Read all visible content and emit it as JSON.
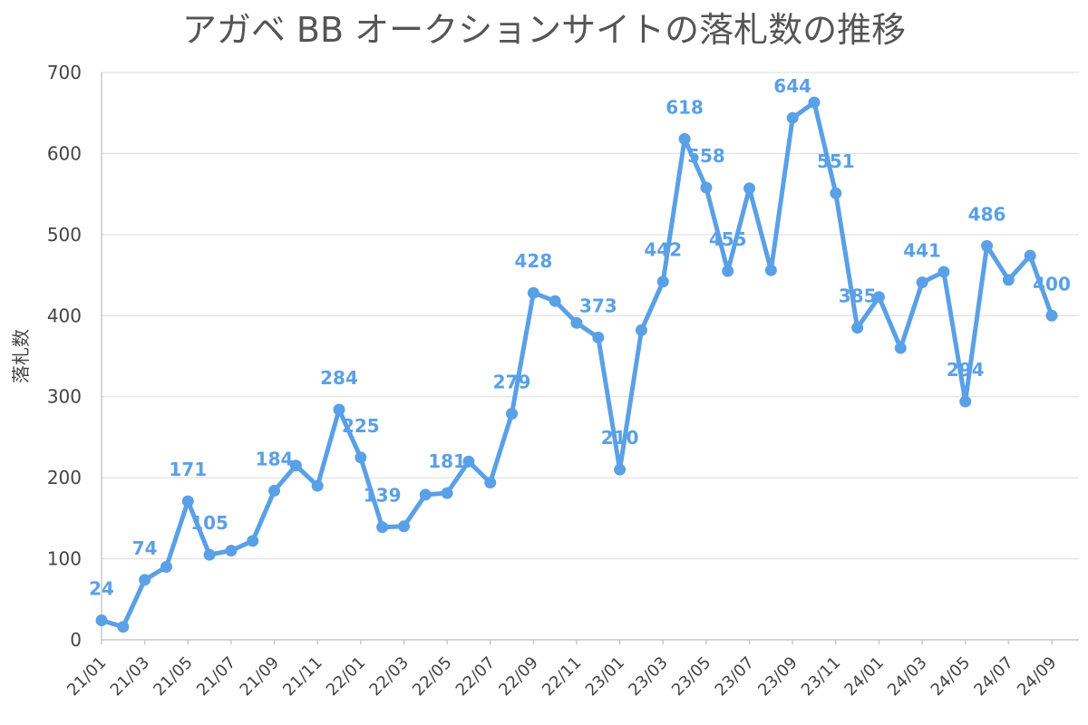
{
  "chart_data": {
    "type": "line",
    "title": "アガベ BB オークションサイトの落札数の推移",
    "xlabel": "",
    "ylabel": "落札数",
    "ylim": [
      0,
      700
    ],
    "yticks": [
      0,
      100,
      200,
      300,
      400,
      500,
      600,
      700
    ],
    "grid": true,
    "legend": "none",
    "line_color": "#5aa0e6",
    "categories": [
      "21/01",
      "21/02",
      "21/03",
      "21/04",
      "21/05",
      "21/06",
      "21/07",
      "21/08",
      "21/09",
      "21/10",
      "21/11",
      "21/12",
      "22/01",
      "22/02",
      "22/03",
      "22/04",
      "22/05",
      "22/06",
      "22/07",
      "22/08",
      "22/09",
      "22/10",
      "22/11",
      "22/12",
      "23/01",
      "23/02",
      "23/03",
      "23/04",
      "23/05",
      "23/06",
      "23/07",
      "23/08",
      "23/09",
      "23/10",
      "23/11",
      "23/12",
      "24/01",
      "24/02",
      "24/03",
      "24/04",
      "24/05",
      "24/06",
      "24/07",
      "24/08",
      "24/09"
    ],
    "tick_labels": [
      "21/01",
      "21/03",
      "21/05",
      "21/07",
      "21/09",
      "21/11",
      "22/01",
      "22/03",
      "22/05",
      "22/07",
      "22/09",
      "22/11",
      "23/01",
      "23/03",
      "23/05",
      "23/07",
      "23/09",
      "23/11",
      "24/01",
      "24/03",
      "24/05",
      "24/07",
      "24/09"
    ],
    "series": [
      {
        "values": [
          24,
          16,
          74,
          90,
          171,
          105,
          110,
          122,
          184,
          215,
          190,
          284,
          225,
          139,
          140,
          179,
          181,
          220,
          194,
          279,
          428,
          418,
          391,
          373,
          210,
          382,
          442,
          618,
          558,
          455,
          557,
          456,
          644,
          663,
          551,
          385,
          423,
          360,
          441,
          454,
          294,
          486,
          444,
          474,
          400
        ],
        "labeled_values": [
          24,
          74,
          171,
          105,
          184,
          284,
          225,
          139,
          181,
          279,
          428,
          373,
          210,
          442,
          618,
          558,
          455,
          644,
          551,
          385,
          441,
          294,
          486,
          400
        ]
      }
    ]
  }
}
